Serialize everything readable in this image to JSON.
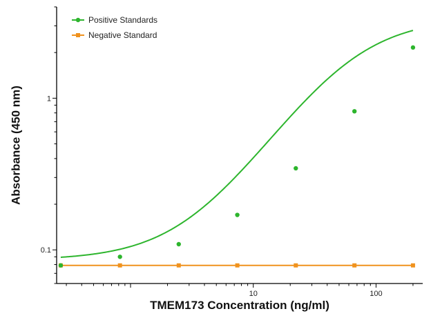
{
  "chart_data": {
    "type": "line",
    "xlabel": "TMEM173 Concentration (ng/ml)",
    "ylabel": "Absorbance (450 nm)",
    "x_scale": "log",
    "y_scale": "log",
    "xlim": [
      0.25,
      240
    ],
    "ylim": [
      0.06,
      4.0
    ],
    "x_ticks": [
      {
        "value": 1,
        "label": ""
      },
      {
        "value": 10,
        "label": "10"
      },
      {
        "value": 100,
        "label": "100"
      }
    ],
    "y_ticks": [
      {
        "value": 0.1,
        "label": "0.1"
      },
      {
        "value": 1,
        "label": "1"
      }
    ],
    "legend_position": "top-left",
    "grid": false,
    "series": [
      {
        "name": "Positive Standards",
        "color": "#2db52d",
        "marker": "circle",
        "fit": "4PL curve",
        "x": [
          0.27,
          0.82,
          2.47,
          7.41,
          22.2,
          66.7,
          200
        ],
        "y": [
          0.079,
          0.09,
          0.109,
          0.17,
          0.345,
          0.82,
          2.16
        ]
      },
      {
        "name": "Negative Standard",
        "color": "#f0921e",
        "marker": "square",
        "x": [
          0.27,
          0.82,
          2.47,
          7.41,
          22.2,
          66.7,
          200
        ],
        "y": [
          0.079,
          0.079,
          0.079,
          0.079,
          0.079,
          0.079,
          0.079
        ]
      }
    ]
  }
}
